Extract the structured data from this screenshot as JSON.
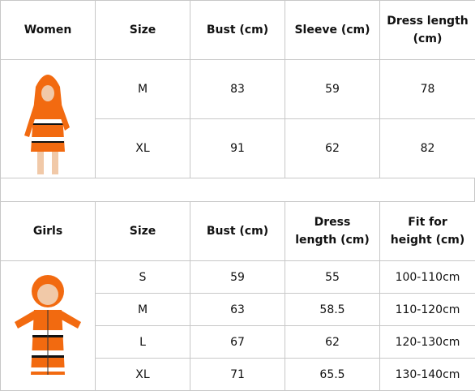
{
  "women": {
    "headers": [
      "Women",
      "Size",
      "Bust (cm)",
      "Sleeve (cm)",
      "Dress length (cm)"
    ],
    "rows": [
      [
        "M",
        83,
        59,
        78
      ],
      [
        "XL",
        91,
        62,
        82
      ]
    ]
  },
  "girls": {
    "headers": [
      "Girls",
      "Size",
      "Bust (cm)",
      "Dress length (cm)",
      "Fit for height (cm)"
    ],
    "rows": [
      [
        "S",
        59,
        55,
        "100-110cm"
      ],
      [
        "M",
        63,
        58.5,
        "110-120cm"
      ],
      [
        "L",
        67,
        62,
        "120-130cm"
      ],
      [
        "XL",
        71,
        65.5,
        "130-140cm"
      ]
    ]
  }
}
